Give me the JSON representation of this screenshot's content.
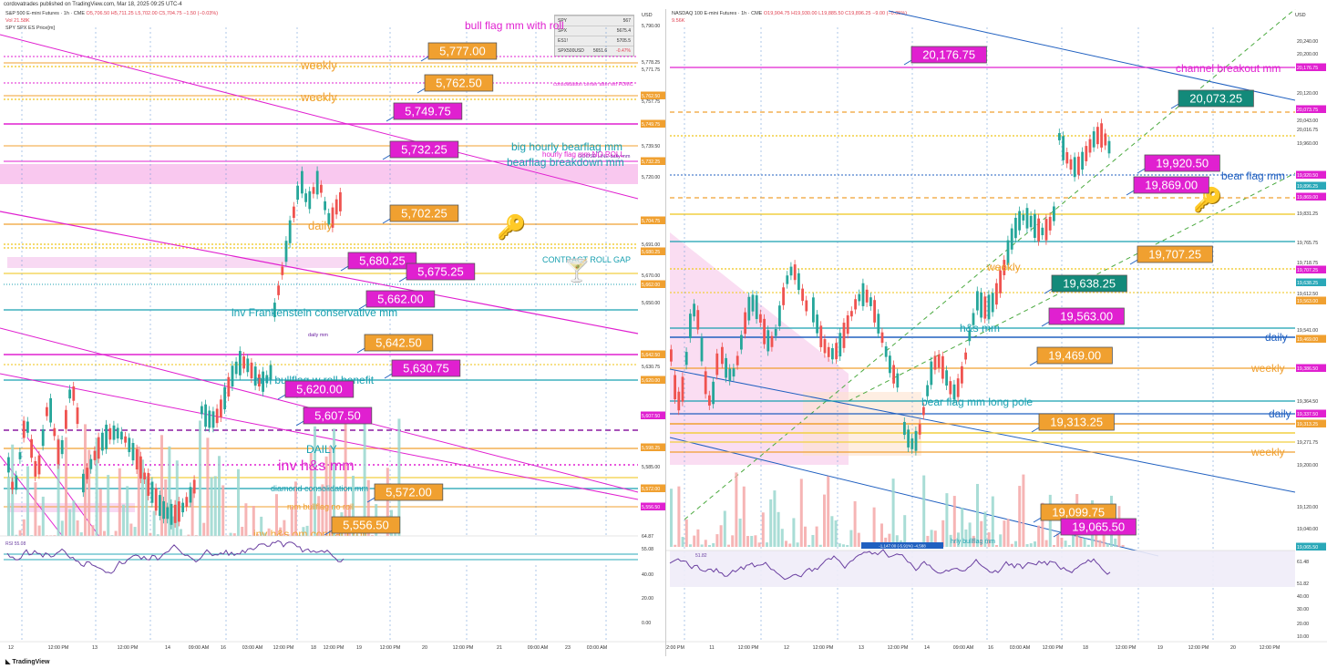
{
  "topbar": "cordovatrades published on TradingView.com, Mar 18, 2025 09:25 UTC-4",
  "brand": "TradingView",
  "left": {
    "title": "S&P 500 E-mini Futures · 1h · CME",
    "ohlc": "O5,706.50 H5,711.25 L5,702.00 C5,704.75 −1.50 (−0.03%)",
    "vol": "Vol 21.58K",
    "sub": "SPY SPX ES Price[m]",
    "rsi": "RSI 55.08",
    "currency": "USD",
    "table": [
      [
        "SPY",
        "567"
      ],
      [
        "SPX",
        "5675.4"
      ],
      [
        "ES1!",
        "5705.5"
      ],
      [
        "SPX500USD",
        "5651.6"
      ]
    ],
    "table_red": "-0.47%",
    "price_axis": [
      "5,790.00",
      "5,778.25",
      "5,771.75",
      "5,762.50",
      "5,757.75",
      "5,749.75",
      "5,739.50",
      "5,732.25",
      "5,720.00",
      "5,704.75",
      "5,691.00",
      "5,680.25",
      "5,670.00",
      "5,662.00",
      "5,650.00",
      "5,642.50",
      "5,630.75",
      "5,620.00",
      "5,607.50",
      "5,598.25",
      "5,585.00",
      "5,572.00",
      "5,556.50"
    ],
    "rsi_axis": [
      "64.87",
      "55.08",
      "40.00",
      "20.00",
      "0.00"
    ],
    "time_axis": [
      "12",
      "12:00 PM",
      "13",
      "12:00 PM",
      "14",
      "09:00 AM",
      "16",
      "03:00 AM",
      "12:00 PM",
      "18",
      "12:00 PM",
      "19",
      "12:00 PM",
      "20",
      "12:00 PM",
      "21",
      "09:00 AM",
      "23",
      "03:00 AM"
    ],
    "tags": [
      "5,777.00",
      "5,762.50",
      "5,749.75",
      "5,732.25",
      "5,702.25",
      "5,680.25",
      "5,675.25",
      "5,662.00",
      "5,642.50",
      "5,630.75",
      "5,620.00",
      "5,607.50",
      "5,572.00",
      "5,556.50"
    ],
    "labels": {
      "weekly1": "weekly",
      "weekly2": "weekly",
      "daily": "daily",
      "bull_flag": "bull flag mm with roll",
      "big_hourly": "big hourly bearflag mm",
      "bearflag_bd": "bearflag breakdown mm",
      "contract_roll": "CONTRACT ROLL GAP",
      "inv_frank": "inv Frankenstein conservative mm",
      "mm_bullflag": "mm bullflag w roll benefit",
      "DAILY": "DAILY",
      "inv_hs": "inv h&s mm",
      "diamond": "diamond consolidation mm",
      "mm_no_roll": "mm bullflag no roll",
      "inv_hs_2": "inv h&s om contract roll",
      "goose": "GOOSE LINE daily mm",
      "hourly_no_roll": "hourly flag mm NO ROLL",
      "consol": "consolidation center after wtf FOMC",
      "daily_mm": "daily mm"
    }
  },
  "right": {
    "title": "NASDAQ 100 E-mini Futures · 1h · CME",
    "ohlc": "O19,904.75 H19,930.00 L19,885.50 C19,896.25 −9.00 (−0.05%)",
    "vol": "9.56K",
    "rsi": "51.82",
    "currency": "USD",
    "price_axis": [
      "20,240.00",
      "20,200.00",
      "20,176.75",
      "20,120.00",
      "20,073.75",
      "20,043.00",
      "20,016.75",
      "19,960.00",
      "19,920.50",
      "19,896.25",
      "19,869.00",
      "19,831.25",
      "19,765.75",
      "19,718.75",
      "19,707.25",
      "19,638.25",
      "19,612.50",
      "19,563.00",
      "19,541.00",
      "19,469.00",
      "19,386.50",
      "19,364.50",
      "19,337.50",
      "19,313.25",
      "19,271.75",
      "19,200.00",
      "19,120.00",
      "19,065.50",
      "19,040.00"
    ],
    "rsi_axis": [
      "61.48",
      "51.82",
      "40.00",
      "30.00",
      "20.00",
      "10.00"
    ],
    "time_axis": [
      "2:00 PM",
      "11",
      "12:00 PM",
      "12",
      "12:00 PM",
      "13",
      "12:00 PM",
      "14",
      "09:00 AM",
      "16",
      "03:00 AM",
      "12:00 PM",
      "18",
      "12:00 PM",
      "19",
      "12:00 PM",
      "20",
      "12:00 PM"
    ],
    "tags": [
      "20,176.75",
      "20,073.25",
      "19,920.50",
      "19,869.00",
      "19,707.25",
      "19,638.25",
      "19,563.00",
      "19,469.00",
      "19,313.25",
      "19,099.75",
      "19,065.50"
    ],
    "labels": {
      "channel": "channel breakout mm",
      "bear_flag": "bear flag mm",
      "weekly1": "weekly",
      "hs": "h&s mm",
      "daily1": "daily",
      "weekly2": "weekly",
      "bear_pole": "bear flag mm long pole",
      "daily2": "daily",
      "weekly3": "weekly",
      "hrly": "hrly bullflag mm",
      "measure": "-1,147.00 (-5.91%) -4,588"
    }
  },
  "colors": {
    "magenta": "#e020d0",
    "orange": "#f0a030",
    "teal": "#18a0b0",
    "green": "#138a7a",
    "blue": "#2060c0",
    "up": "#26a69a",
    "down": "#ef5350"
  }
}
